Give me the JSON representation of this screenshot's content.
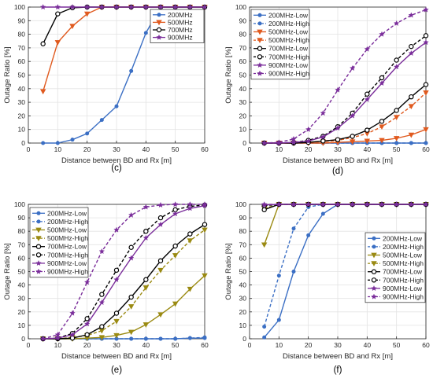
{
  "colors": {
    "200MHz": "#3b6fc4",
    "500MHz": "#e05a1f",
    "500MHz_panel_e_f": "#9a8a12",
    "700MHz": "#000000",
    "900MHz": "#7a2d9a",
    "grid": "#e3e3e3",
    "axis": "#262626"
  },
  "chart_data": [
    {
      "panel": "c",
      "caption": "(c)",
      "type": "line",
      "xlabel": "Distance between BD and Rx [m]",
      "ylabel": "Outage Ratio [%]",
      "xlim": [
        0,
        60
      ],
      "ylim": [
        0,
        100
      ],
      "xticks": [
        "0",
        "10",
        "20",
        "30",
        "40",
        "50",
        "60"
      ],
      "yticks": [
        "0",
        "10",
        "20",
        "30",
        "40",
        "50",
        "60",
        "70",
        "80",
        "90",
        "100"
      ],
      "grid": true,
      "legend_position": "top-right",
      "x": [
        5,
        10,
        15,
        20,
        25,
        30,
        35,
        40,
        45,
        50,
        55,
        60
      ],
      "series": [
        {
          "name": "200MHz",
          "marker": "dot",
          "dashed": false,
          "color": "#3b6fc4",
          "values": [
            0,
            0,
            2.5,
            7,
            17,
            27,
            53,
            81,
            100,
            100,
            100,
            100
          ]
        },
        {
          "name": "500MHz",
          "marker": "triangle-down",
          "dashed": false,
          "color": "#e05a1f",
          "values": [
            38,
            74,
            86,
            95,
            100,
            100,
            100,
            100,
            100,
            100,
            100,
            100
          ]
        },
        {
          "name": "700MHz",
          "marker": "circle-open",
          "dashed": false,
          "color": "#000000",
          "values": [
            73,
            95,
            99.5,
            100,
            100,
            100,
            100,
            100,
            100,
            100,
            100,
            100
          ]
        },
        {
          "name": "900MHz",
          "marker": "star",
          "dashed": false,
          "color": "#7a2d9a",
          "values": [
            100,
            100,
            100,
            100,
            100,
            100,
            100,
            100,
            100,
            100,
            100,
            100
          ]
        }
      ]
    },
    {
      "panel": "d",
      "caption": "(d)",
      "type": "line",
      "xlabel": "Distance between BD and Rx [m]",
      "ylabel": "Outage Ratio [%]",
      "xlim": [
        0,
        60
      ],
      "ylim": [
        0,
        100
      ],
      "xticks": [
        "0",
        "10",
        "20",
        "30",
        "40",
        "50",
        "60"
      ],
      "yticks": [
        "0",
        "10",
        "20",
        "30",
        "40",
        "50",
        "60",
        "70",
        "80",
        "90",
        "100"
      ],
      "grid": true,
      "legend_position": "top-left",
      "x": [
        5,
        10,
        15,
        20,
        25,
        30,
        35,
        40,
        45,
        50,
        55,
        60
      ],
      "series": [
        {
          "name": "200MHz-Low",
          "marker": "dot",
          "dashed": false,
          "color": "#3b6fc4",
          "values": [
            0,
            0,
            0,
            0,
            0,
            0,
            0,
            0,
            0,
            0,
            0,
            0
          ]
        },
        {
          "name": "200MHz-High",
          "marker": "dot",
          "dashed": true,
          "color": "#3b6fc4",
          "values": [
            0,
            0,
            0,
            0,
            0,
            0,
            0,
            0,
            0,
            0,
            0,
            0
          ]
        },
        {
          "name": "500MHz-Low",
          "marker": "triangle-down",
          "dashed": false,
          "color": "#e05a1f",
          "values": [
            0,
            0,
            0,
            0,
            0,
            0.5,
            1,
            1.5,
            2,
            3.5,
            6,
            10
          ]
        },
        {
          "name": "500MHz-High",
          "marker": "triangle-down",
          "dashed": true,
          "color": "#e05a1f",
          "values": [
            0,
            0,
            0,
            0.5,
            1,
            2,
            4,
            7,
            12,
            19,
            27,
            37
          ]
        },
        {
          "name": "700MHz-Low",
          "marker": "circle-open",
          "dashed": false,
          "color": "#000000",
          "values": [
            0,
            0,
            0,
            0.5,
            1.5,
            2.5,
            5,
            9.5,
            16,
            24,
            34,
            43
          ]
        },
        {
          "name": "700MHz-High",
          "marker": "circle-open",
          "dashed": true,
          "color": "#000000",
          "values": [
            0,
            0,
            0.5,
            2,
            5,
            12,
            22,
            36,
            48,
            61,
            71,
            79
          ]
        },
        {
          "name": "900MHz-Low",
          "marker": "star",
          "dashed": false,
          "color": "#7a2d9a",
          "values": [
            0,
            0,
            0.5,
            1.5,
            4.5,
            11,
            20,
            32,
            44,
            56,
            66,
            74
          ]
        },
        {
          "name": "900MHz-High",
          "marker": "star",
          "dashed": true,
          "color": "#7a2d9a",
          "values": [
            0,
            0.5,
            3,
            10,
            22,
            39,
            55,
            69,
            80,
            88,
            94,
            98
          ]
        }
      ]
    },
    {
      "panel": "e",
      "caption": "(e)",
      "type": "line",
      "xlabel": "Distance between BD and Rx [m]",
      "ylabel": "Outage Ratio [%]",
      "xlim": [
        0,
        60
      ],
      "ylim": [
        0,
        100
      ],
      "xticks": [
        "0",
        "10",
        "20",
        "30",
        "40",
        "50",
        "60"
      ],
      "yticks": [
        "0",
        "10",
        "20",
        "30",
        "40",
        "50",
        "60",
        "70",
        "80",
        "90",
        "100"
      ],
      "grid": true,
      "legend_position": "top-left",
      "x": [
        5,
        10,
        15,
        20,
        25,
        30,
        35,
        40,
        45,
        50,
        55,
        60
      ],
      "series": [
        {
          "name": "200MHz-Low",
          "marker": "dot",
          "dashed": false,
          "color": "#3b6fc4",
          "values": [
            0,
            0,
            0,
            0,
            0,
            0,
            0,
            0,
            0,
            0,
            0.5,
            0.5
          ]
        },
        {
          "name": "200MHz-High",
          "marker": "dot",
          "dashed": true,
          "color": "#3b6fc4",
          "values": [
            0,
            0,
            0,
            0,
            0,
            0,
            0,
            0,
            0,
            0,
            0.5,
            1
          ]
        },
        {
          "name": "500MHz-Low",
          "marker": "triangle-down",
          "dashed": false,
          "color": "#9a8a12",
          "values": [
            0,
            0,
            0,
            0.5,
            1,
            2.5,
            5,
            10.5,
            18,
            26,
            37,
            47
          ]
        },
        {
          "name": "500MHz-High",
          "marker": "triangle-down",
          "dashed": true,
          "color": "#9a8a12",
          "values": [
            0,
            0,
            1,
            2.5,
            6,
            13,
            24,
            38,
            51,
            62,
            73,
            81
          ]
        },
        {
          "name": "700MHz-Low",
          "marker": "circle-open",
          "dashed": false,
          "color": "#000000",
          "values": [
            0,
            0,
            0.5,
            3,
            9,
            19,
            31,
            44,
            58,
            69,
            78,
            85
          ]
        },
        {
          "name": "700MHz-High",
          "marker": "circle-open",
          "dashed": true,
          "color": "#000000",
          "values": [
            0,
            0.5,
            4,
            15,
            33,
            51,
            68,
            80,
            90,
            96,
            98.5,
            99.5
          ]
        },
        {
          "name": "900MHz-Low",
          "marker": "star",
          "dashed": false,
          "color": "#7a2d9a",
          "values": [
            0,
            0.5,
            3,
            11,
            27,
            44,
            60,
            75,
            85,
            93,
            97,
            99
          ]
        },
        {
          "name": "900MHz-High",
          "marker": "star",
          "dashed": true,
          "color": "#7a2d9a",
          "values": [
            0,
            3,
            19,
            42,
            65,
            81,
            92,
            98,
            99.5,
            100,
            100,
            100
          ]
        }
      ]
    },
    {
      "panel": "f",
      "caption": "(f)",
      "type": "line",
      "xlabel": "Distance between BD and Rx [m]",
      "ylabel": "Outage Ratio [%]",
      "xlim": [
        0,
        60
      ],
      "ylim": [
        0,
        100
      ],
      "xticks": [
        "0",
        "10",
        "20",
        "30",
        "40",
        "50",
        "60"
      ],
      "yticks": [
        "0",
        "10",
        "20",
        "30",
        "40",
        "50",
        "60",
        "70",
        "80",
        "90",
        "100"
      ],
      "grid": true,
      "legend_position": "right",
      "x": [
        5,
        10,
        15,
        20,
        25,
        30,
        35,
        40,
        45,
        50,
        55,
        60
      ],
      "series": [
        {
          "name": "200MHz-Low",
          "marker": "dot",
          "dashed": false,
          "color": "#3b6fc4",
          "values": [
            1,
            14,
            50,
            77,
            93,
            100,
            100,
            100,
            100,
            100,
            100,
            100
          ]
        },
        {
          "name": "200MHz-High",
          "marker": "dot",
          "dashed": true,
          "color": "#3b6fc4",
          "values": [
            9,
            47,
            82,
            98,
            100,
            100,
            100,
            100,
            100,
            100,
            100,
            100
          ]
        },
        {
          "name": "500MHz-Low",
          "marker": "triangle-down",
          "dashed": false,
          "color": "#9a8a12",
          "values": [
            70,
            100,
            100,
            100,
            100,
            100,
            100,
            100,
            100,
            100,
            100,
            100
          ]
        },
        {
          "name": "500MHz-High",
          "marker": "triangle-down",
          "dashed": true,
          "color": "#9a8a12",
          "values": [
            97,
            100,
            100,
            100,
            100,
            100,
            100,
            100,
            100,
            100,
            100,
            100
          ]
        },
        {
          "name": "700MHz-Low",
          "marker": "circle-open",
          "dashed": false,
          "color": "#000000",
          "values": [
            96,
            100,
            100,
            100,
            100,
            100,
            100,
            100,
            100,
            100,
            100,
            100
          ]
        },
        {
          "name": "700MHz-High",
          "marker": "circle-open",
          "dashed": true,
          "color": "#000000",
          "values": [
            99,
            100,
            100,
            100,
            100,
            100,
            100,
            100,
            100,
            100,
            100,
            100
          ]
        },
        {
          "name": "900MHz-Low",
          "marker": "star",
          "dashed": false,
          "color": "#7a2d9a",
          "values": [
            99.5,
            100,
            100,
            100,
            100,
            100,
            100,
            100,
            100,
            100,
            100,
            100
          ]
        },
        {
          "name": "900MHz-High",
          "marker": "star",
          "dashed": true,
          "color": "#7a2d9a",
          "values": [
            100,
            100,
            100,
            100,
            100,
            100,
            100,
            100,
            100,
            100,
            100,
            100
          ]
        }
      ]
    }
  ]
}
